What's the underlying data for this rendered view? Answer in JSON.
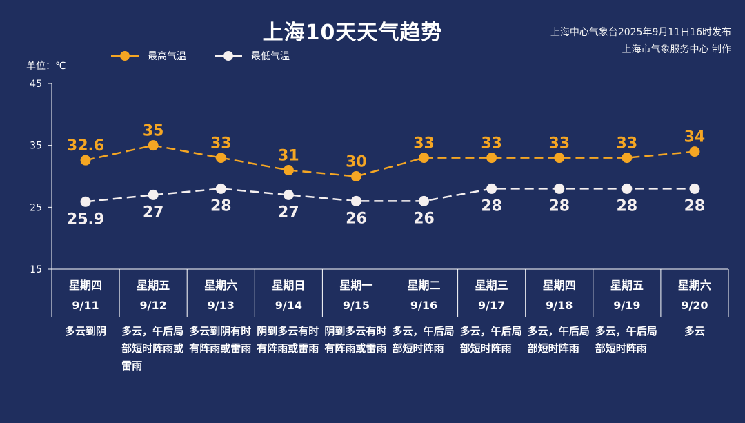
{
  "title": "上海10天天气趋势",
  "source_line1": "上海中心气象台2025年9月11日16时发布",
  "source_line2": "上海市气象服务中心 制作",
  "unit_label": "单位：℃",
  "colors": {
    "background": "#1f2e5e",
    "high": "#f5a623",
    "low": "#f5f0f0",
    "axis": "#ffffff"
  },
  "chart_data": {
    "type": "line",
    "ylim": [
      15,
      45
    ],
    "yticks": [
      15,
      25,
      35,
      45
    ],
    "legend_position": "top-left",
    "series": [
      {
        "name": "最高气温",
        "values": [
          32.6,
          35,
          33,
          31,
          30,
          33,
          33,
          33,
          33,
          34
        ],
        "labels": [
          "32.6",
          "35",
          "33",
          "31",
          "30",
          "33",
          "33",
          "33",
          "33",
          "34"
        ]
      },
      {
        "name": "最低气温",
        "values": [
          25.9,
          27,
          28,
          27,
          26,
          26,
          28,
          28,
          28,
          28
        ],
        "labels": [
          "25.9",
          "27",
          "28",
          "27",
          "26",
          "26",
          "28",
          "28",
          "28",
          "28"
        ]
      }
    ],
    "days": [
      {
        "weekday": "星期四",
        "date": "9/11",
        "weather": "多云到阴"
      },
      {
        "weekday": "星期五",
        "date": "9/12",
        "weather": "多云，午后局部短时阵雨或雷雨"
      },
      {
        "weekday": "星期六",
        "date": "9/13",
        "weather": "多云到阴有时有阵雨或雷雨"
      },
      {
        "weekday": "星期日",
        "date": "9/14",
        "weather": "阴到多云有时有阵雨或雷雨"
      },
      {
        "weekday": "星期一",
        "date": "9/15",
        "weather": "阴到多云有时有阵雨或雷雨"
      },
      {
        "weekday": "星期二",
        "date": "9/16",
        "weather": "多云，午后局部短时阵雨"
      },
      {
        "weekday": "星期三",
        "date": "9/17",
        "weather": "多云，午后局部短时阵雨"
      },
      {
        "weekday": "星期四",
        "date": "9/18",
        "weather": "多云，午后局部短时阵雨"
      },
      {
        "weekday": "星期五",
        "date": "9/19",
        "weather": "多云，午后局部短时阵雨"
      },
      {
        "weekday": "星期六",
        "date": "9/20",
        "weather": "多云"
      }
    ]
  }
}
